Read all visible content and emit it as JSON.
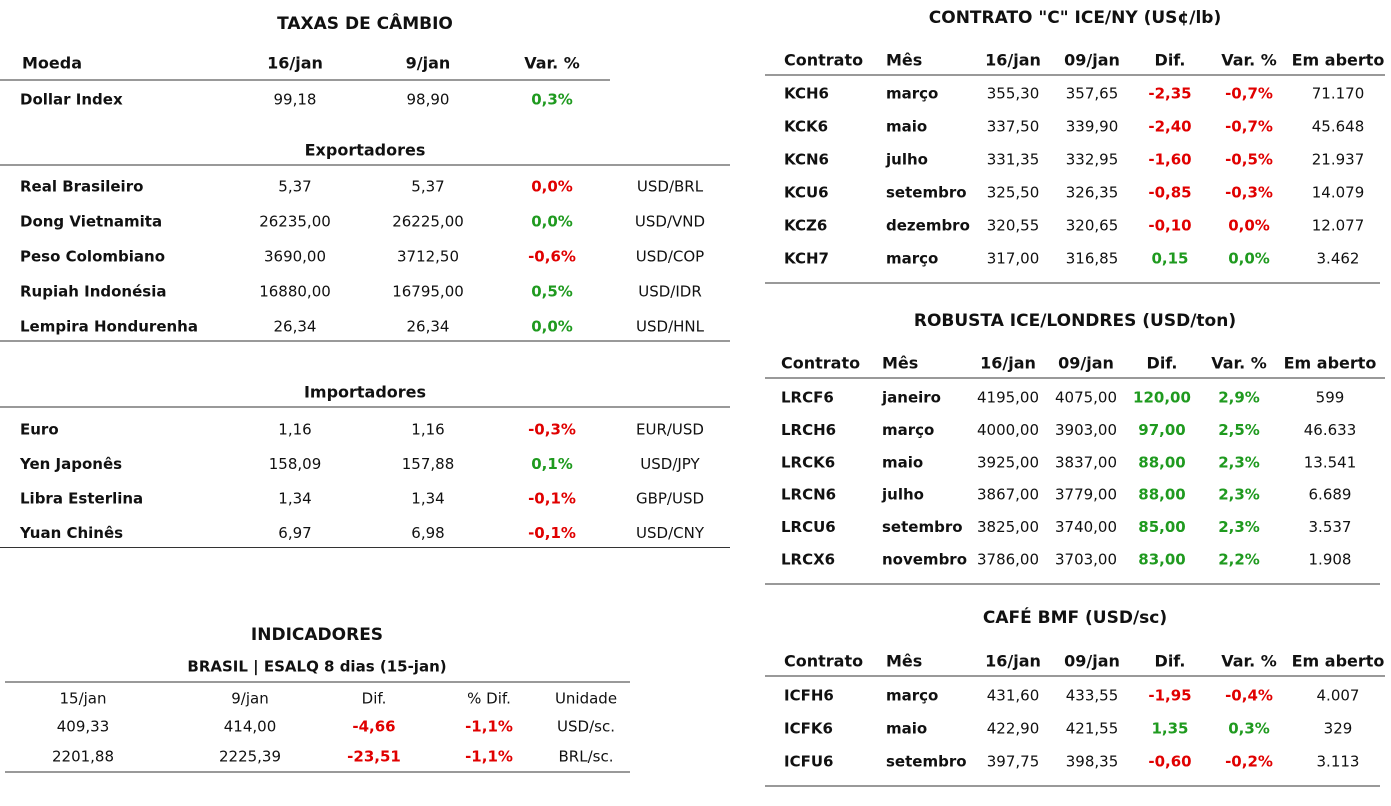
{
  "fx": {
    "title": "TAXAS DE CÂMBIO",
    "header": [
      "Moeda",
      "16/jan",
      "9/jan",
      "Var. %"
    ],
    "dollar_index": {
      "row": [
        "Dollar Index",
        "99,18",
        "98,90",
        "0,3%"
      ],
      "var_color": "#1f9a1f"
    },
    "exporters": {
      "title": "Exportadores",
      "rows": [
        [
          "Real Brasileiro",
          "5,37",
          "5,37",
          "0,0%",
          "USD/BRL"
        ],
        [
          "Dong Vietnamita",
          "26235,00",
          "26225,00",
          "0,0%",
          "USD/VND"
        ],
        [
          "Peso Colombiano",
          "3690,00",
          "3712,50",
          "-0,6%",
          "USD/COP"
        ],
        [
          "Rupiah Indonésia",
          "16880,00",
          "16795,00",
          "0,5%",
          "USD/IDR"
        ],
        [
          "Lempira Hondurenha",
          "26,34",
          "26,34",
          "0,0%",
          "USD/HNL"
        ]
      ],
      "var_colors": [
        "#e00000",
        "#1f9a1f",
        "#e00000",
        "#1f9a1f",
        "#1f9a1f"
      ]
    },
    "importers": {
      "title": "Importadores",
      "rows": [
        [
          "Euro",
          "1,16",
          "1,16",
          "-0,3%",
          "EUR/USD"
        ],
        [
          "Yen Japonês",
          "158,09",
          "157,88",
          "0,1%",
          "USD/JPY"
        ],
        [
          "Libra Esterlina",
          "1,34",
          "1,34",
          "-0,1%",
          "GBP/USD"
        ],
        [
          "Yuan Chinês",
          "6,97",
          "6,98",
          "-0,1%",
          "USD/CNY"
        ]
      ],
      "var_colors": [
        "#e00000",
        "#1f9a1f",
        "#e00000",
        "#e00000"
      ]
    }
  },
  "indicators": {
    "title": "INDICADORES",
    "subtitle": "BRASIL | ESALQ 8 dias (15-jan)",
    "header": [
      "15/jan",
      "9/jan",
      "Dif.",
      "% Dif.",
      "Unidade"
    ],
    "rows": [
      [
        "409,33",
        "414,00",
        "-4,66",
        "-1,1%",
        "USD/sc."
      ],
      [
        "2201,88",
        "2225,39",
        "-23,51",
        "-1,1%",
        "BRL/sc."
      ]
    ],
    "var_colors": [
      "#e00000",
      "#e00000"
    ]
  },
  "futures": [
    {
      "title": "CONTRATO \"C\" ICE/NY (US¢/lb)",
      "header": [
        "Contrato",
        "Mês",
        "16/jan",
        "09/jan",
        "Dif.",
        "Var. %",
        "Em aberto"
      ],
      "rows": [
        [
          "KCH6",
          "março",
          "355,30",
          "357,65",
          "-2,35",
          "-0,7%",
          "71.170"
        ],
        [
          "KCK6",
          "maio",
          "337,50",
          "339,90",
          "-2,40",
          "-0,7%",
          "45.648"
        ],
        [
          "KCN6",
          "julho",
          "331,35",
          "332,95",
          "-1,60",
          "-0,5%",
          "21.937"
        ],
        [
          "KCU6",
          "setembro",
          "325,50",
          "326,35",
          "-0,85",
          "-0,3%",
          "14.079"
        ],
        [
          "KCZ6",
          "dezembro",
          "320,55",
          "320,65",
          "-0,10",
          "0,0%",
          "12.077"
        ],
        [
          "KCH7",
          "março",
          "317,00",
          "316,85",
          "0,15",
          "0,0%",
          "3.462"
        ]
      ],
      "var_colors": [
        "#e00000",
        "#e00000",
        "#e00000",
        "#e00000",
        "#e00000",
        "#1f9a1f"
      ]
    },
    {
      "title": "ROBUSTA ICE/LONDRES (USD/ton)",
      "header": [
        "Contrato",
        "Mês",
        "16/jan",
        "09/jan",
        "Dif.",
        "Var. %",
        "Em aberto"
      ],
      "rows": [
        [
          "LRCF6",
          "janeiro",
          "4195,00",
          "4075,00",
          "120,00",
          "2,9%",
          "599"
        ],
        [
          "LRCH6",
          "março",
          "4000,00",
          "3903,00",
          "97,00",
          "2,5%",
          "46.633"
        ],
        [
          "LRCK6",
          "maio",
          "3925,00",
          "3837,00",
          "88,00",
          "2,3%",
          "13.541"
        ],
        [
          "LRCN6",
          "julho",
          "3867,00",
          "3779,00",
          "88,00",
          "2,3%",
          "6.689"
        ],
        [
          "LRCU6",
          "setembro",
          "3825,00",
          "3740,00",
          "85,00",
          "2,3%",
          "3.537"
        ],
        [
          "LRCX6",
          "novembro",
          "3786,00",
          "3703,00",
          "83,00",
          "2,2%",
          "1.908"
        ]
      ],
      "var_colors": [
        "#1f9a1f",
        "#1f9a1f",
        "#1f9a1f",
        "#1f9a1f",
        "#1f9a1f",
        "#1f9a1f"
      ]
    },
    {
      "title": "CAFÉ BMF (USD/sc)",
      "header": [
        "Contrato",
        "Mês",
        "16/jan",
        "09/jan",
        "Dif.",
        "Var. %",
        "Em aberto"
      ],
      "rows": [
        [
          "ICFH6",
          "março",
          "431,60",
          "433,55",
          "-1,95",
          "-0,4%",
          "4.007"
        ],
        [
          "ICFK6",
          "maio",
          "422,90",
          "421,55",
          "1,35",
          "0,3%",
          "329"
        ],
        [
          "ICFU6",
          "setembro",
          "397,75",
          "398,35",
          "-0,60",
          "-0,2%",
          "3.113"
        ]
      ],
      "var_colors": [
        "#e00000",
        "#1f9a1f",
        "#e00000"
      ]
    }
  ]
}
